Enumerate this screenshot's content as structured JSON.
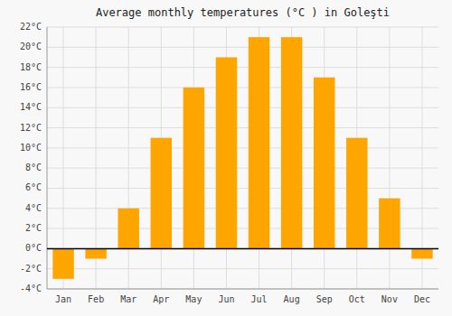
{
  "chart_data": {
    "type": "bar",
    "title": "Average monthly temperatures (°C ) in Goleşti",
    "categories": [
      "Jan",
      "Feb",
      "Mar",
      "Apr",
      "May",
      "Jun",
      "Jul",
      "Aug",
      "Sep",
      "Oct",
      "Nov",
      "Dec"
    ],
    "values": [
      -3,
      -1,
      4,
      11,
      16,
      19,
      21,
      21,
      17,
      11,
      5,
      -1
    ],
    "color": "#FFA500",
    "ylim": [
      -4,
      22
    ],
    "yticks": [
      {
        "value": -4,
        "label": "-4°C"
      },
      {
        "value": -2,
        "label": "-2°C"
      },
      {
        "value": 0,
        "label": "0°C"
      },
      {
        "value": 2,
        "label": "2°C"
      },
      {
        "value": 4,
        "label": "4°C"
      },
      {
        "value": 6,
        "label": "6°C"
      },
      {
        "value": 8,
        "label": "8°C"
      },
      {
        "value": 10,
        "label": "10°C"
      },
      {
        "value": 12,
        "label": "12°C"
      },
      {
        "value": 14,
        "label": "14°C"
      },
      {
        "value": 16,
        "label": "16°C"
      },
      {
        "value": 18,
        "label": "18°C"
      },
      {
        "value": 20,
        "label": "20°C"
      },
      {
        "value": 22,
        "label": "22°C"
      }
    ],
    "grid": true
  }
}
